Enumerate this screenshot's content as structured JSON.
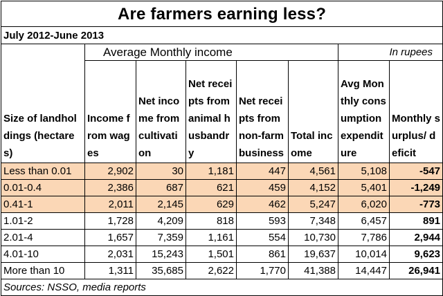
{
  "title": "Are farmers earning less?",
  "period": "July 2012-June 2013",
  "subheader": {
    "avg": "Average Monthly income",
    "unit": "In rupees"
  },
  "headers": [
    "Size of landholdings (hectares)",
    "Income from wages",
    "Net income from cultivation",
    "Net receipts from animal husbandry",
    "Net receipts from non-farm business",
    "Total income",
    "Avg Monthly consumption expenditure",
    "Monthly surplus/ deficit"
  ],
  "rows": [
    {
      "size": "Less than 0.01",
      "wages": "2,902",
      "cultivation": "30",
      "animal": "1,181",
      "nonfarm": "447",
      "total": "4,561",
      "consumption": "5,108",
      "surplus": "-547",
      "shaded": true
    },
    {
      "size": "0.01-0.4",
      "wages": "2,386",
      "cultivation": "687",
      "animal": "621",
      "nonfarm": "459",
      "total": "4,152",
      "consumption": "5,401",
      "surplus": "-1,249",
      "shaded": true
    },
    {
      "size": "0.41-1",
      "wages": "2,011",
      "cultivation": "2,145",
      "animal": "629",
      "nonfarm": "462",
      "total": "5,247",
      "consumption": "6,020",
      "surplus": "-773",
      "shaded": true
    },
    {
      "size": "1.01-2",
      "wages": "1,728",
      "cultivation": "4,209",
      "animal": "818",
      "nonfarm": "593",
      "total": "7,348",
      "consumption": "6,457",
      "surplus": "891",
      "shaded": false
    },
    {
      "size": "2.01-4",
      "wages": "1,657",
      "cultivation": "7,359",
      "animal": "1,161",
      "nonfarm": "554",
      "total": "10,730",
      "consumption": "7,786",
      "surplus": "2,944",
      "shaded": false
    },
    {
      "size": "4.01-10",
      "wages": "2,031",
      "cultivation": "15,243",
      "animal": "1,501",
      "nonfarm": "861",
      "total": "19,637",
      "consumption": "10,014",
      "surplus": "9,623",
      "shaded": false
    },
    {
      "size": "More than 10",
      "wages": "1,311",
      "cultivation": "35,685",
      "animal": "2,622",
      "nonfarm": "1,770",
      "total": "41,388",
      "consumption": "14,447",
      "surplus": "26,941",
      "shaded": false
    }
  ],
  "source": "Sources: NSSO, media reports",
  "colors": {
    "shaded_row": "#fbd7b6",
    "border": "#000000"
  }
}
